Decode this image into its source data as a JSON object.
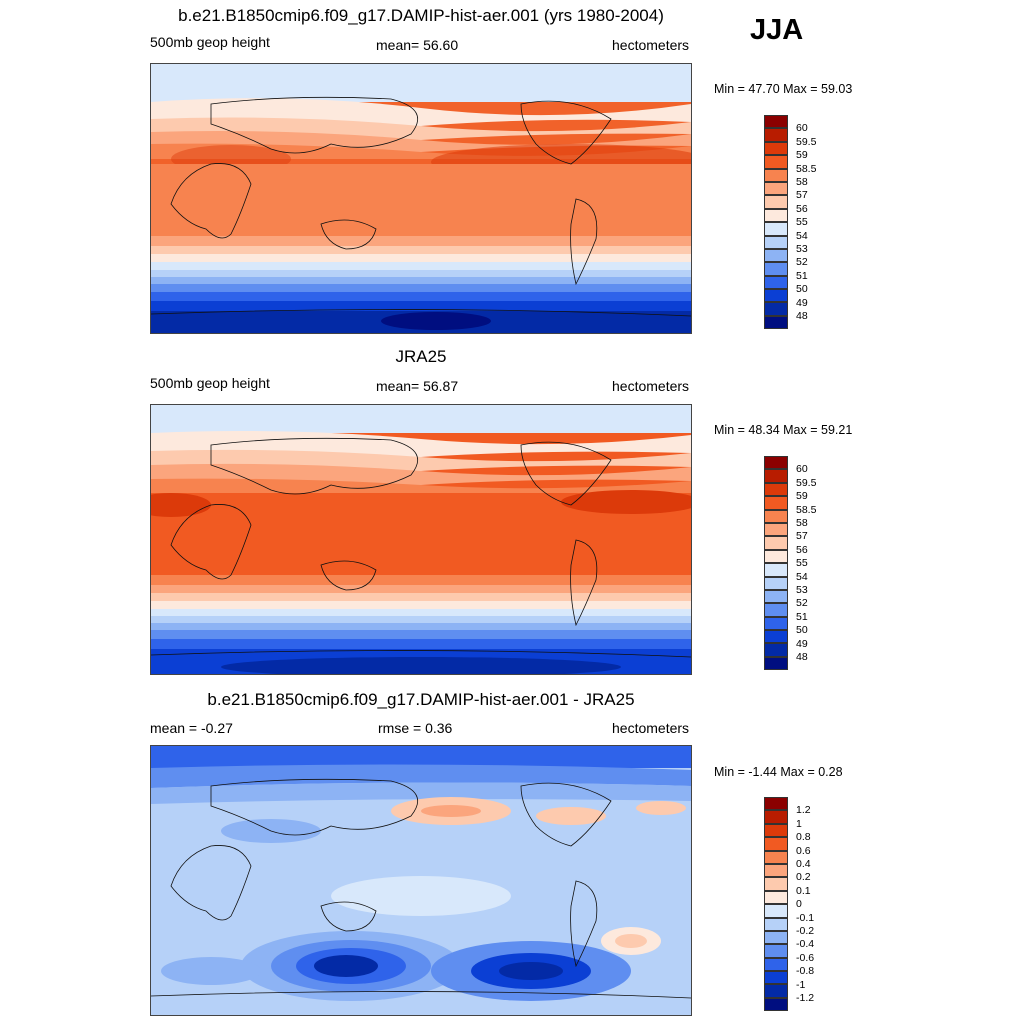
{
  "season": "JJA",
  "panels": [
    {
      "id": "model",
      "title": "b.e21.B1850cmip6.f09_g17.DAMIP-hist-aer.001 (yrs 1980-2004)",
      "left_label": "500mb geop height",
      "center_label": "mean=  56.60",
      "right_label": "hectometers",
      "minmax": "Min =  47.70 Max =  59.03"
    },
    {
      "id": "obs",
      "title": "JRA25",
      "left_label": "500mb geop height",
      "center_label": "mean=  56.87",
      "right_label": "hectometers",
      "minmax": "Min =  48.34 Max =  59.21"
    },
    {
      "id": "diff",
      "title": "b.e21.B1850cmip6.f09_g17.DAMIP-hist-aer.001 - JRA25",
      "left_label": "mean =  -0.27",
      "center_label": "rmse =   0.36",
      "right_label": "hectometers",
      "minmax": "Min =  -1.44 Max =   0.28"
    }
  ],
  "colorbars": {
    "abs": {
      "levels": [
        "60",
        "59.5",
        "59",
        "58.5",
        "58",
        "57",
        "56",
        "55",
        "54",
        "53",
        "52",
        "51",
        "50",
        "49",
        "48"
      ],
      "colors": [
        "#8b0000",
        "#b81c00",
        "#dc3a0a",
        "#f15a22",
        "#f7834f",
        "#fba57d",
        "#fdcaae",
        "#fde9dd",
        "#d8e8fb",
        "#b6d1f8",
        "#8db3f4",
        "#5f8ef0",
        "#2f63ea",
        "#0b3fd4",
        "#032aa6",
        "#000e80"
      ]
    },
    "diff": {
      "levels": [
        "1.2",
        "1",
        "0.8",
        "0.6",
        "0.4",
        "0.2",
        "0.1",
        "0",
        "-0.1",
        "-0.2",
        "-0.4",
        "-0.6",
        "-0.8",
        "-1",
        "-1.2"
      ],
      "colors": [
        "#8b0000",
        "#b81c00",
        "#dc3a0a",
        "#f15a22",
        "#f7834f",
        "#fba57d",
        "#fdcaae",
        "#fde9dd",
        "#d8e8fb",
        "#b6d1f8",
        "#8db3f4",
        "#5f8ef0",
        "#2f63ea",
        "#0b3fd4",
        "#032aa6",
        "#000e80"
      ]
    }
  },
  "chart_data": [
    {
      "type": "heatmap",
      "title": "b.e21.B1850cmip6.f09_g17.DAMIP-hist-aer.001 (yrs 1980-2004)",
      "variable": "500mb geop height",
      "units": "hectometers",
      "mean": 56.6,
      "min": 47.7,
      "max": 59.03,
      "contour_levels": [
        48,
        49,
        50,
        51,
        52,
        53,
        54,
        55,
        56,
        57,
        58,
        58.5,
        59,
        59.5,
        60
      ]
    },
    {
      "type": "heatmap",
      "title": "JRA25",
      "variable": "500mb geop height",
      "units": "hectometers",
      "mean": 56.87,
      "min": 48.34,
      "max": 59.21,
      "contour_levels": [
        48,
        49,
        50,
        51,
        52,
        53,
        54,
        55,
        56,
        57,
        58,
        58.5,
        59,
        59.5,
        60
      ]
    },
    {
      "type": "heatmap",
      "title": "b.e21.B1850cmip6.f09_g17.DAMIP-hist-aer.001 - JRA25",
      "units": "hectometers",
      "mean": -0.27,
      "rmse": 0.36,
      "min": -1.44,
      "max": 0.28,
      "contour_levels": [
        -1.2,
        -1,
        -0.8,
        -0.6,
        -0.4,
        -0.2,
        -0.1,
        0,
        0.1,
        0.2,
        0.4,
        0.6,
        0.8,
        1,
        1.2
      ]
    }
  ]
}
